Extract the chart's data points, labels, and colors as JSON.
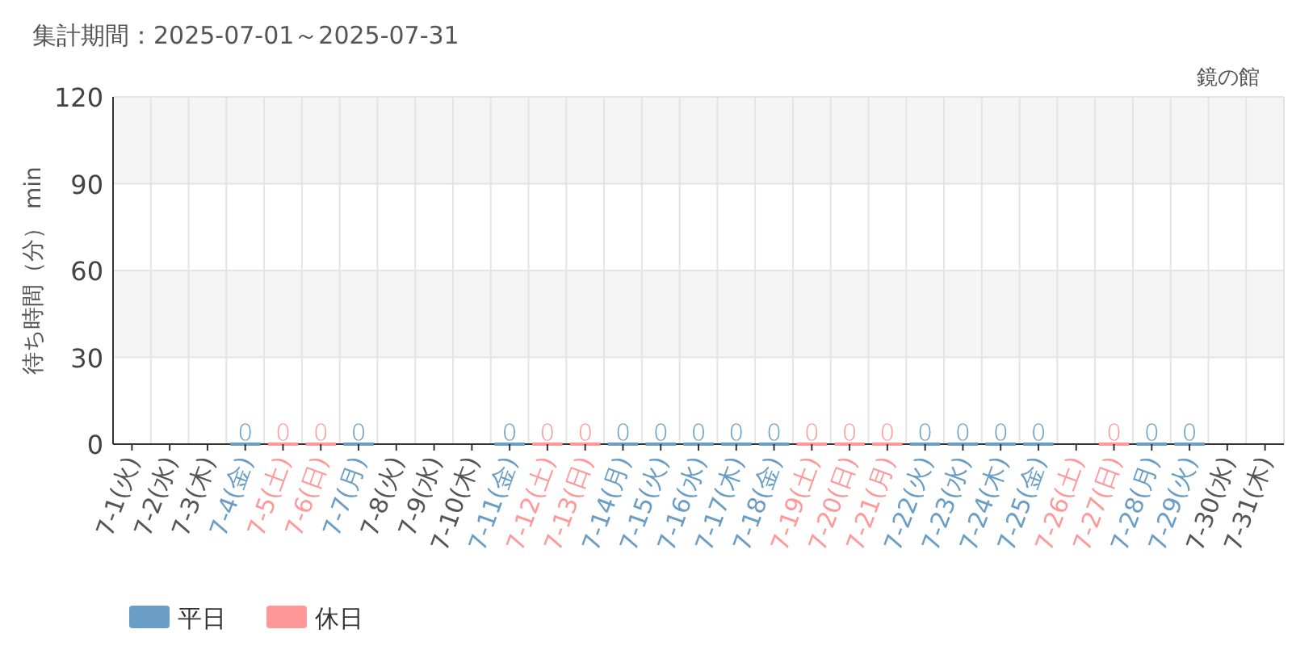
{
  "chart_data": {
    "type": "bar",
    "title": "集計期間：2025-07-01～2025-07-31",
    "subtitle": "鏡の館",
    "ylabel": "待ち時間（分） min",
    "categories": [
      "7-1(火)",
      "7-2(水)",
      "7-3(木)",
      "7-4(金)",
      "7-5(土)",
      "7-6(日)",
      "7-7(月)",
      "7-8(火)",
      "7-9(水)",
      "7-10(木)",
      "7-11(金)",
      "7-12(土)",
      "7-13(日)",
      "7-14(月)",
      "7-15(火)",
      "7-16(水)",
      "7-17(木)",
      "7-18(金)",
      "7-19(土)",
      "7-20(日)",
      "7-21(月)",
      "7-22(火)",
      "7-23(水)",
      "7-24(木)",
      "7-25(金)",
      "7-26(土)",
      "7-27(日)",
      "7-28(月)",
      "7-29(火)",
      "7-30(水)",
      "7-31(木)"
    ],
    "series": [
      {
        "name": "平日",
        "color": "#6a9ec6",
        "values": [
          null,
          null,
          null,
          0,
          null,
          null,
          0,
          null,
          null,
          null,
          0,
          null,
          null,
          0,
          0,
          0,
          0,
          0,
          null,
          null,
          null,
          0,
          0,
          0,
          0,
          null,
          null,
          0,
          0,
          null,
          null
        ]
      },
      {
        "name": "休日",
        "color": "#ff9999",
        "values": [
          null,
          null,
          null,
          null,
          0,
          0,
          null,
          null,
          null,
          null,
          null,
          0,
          0,
          null,
          null,
          null,
          null,
          null,
          0,
          0,
          0,
          null,
          null,
          null,
          null,
          null,
          0,
          null,
          null,
          null,
          null
        ]
      }
    ],
    "colors": [
      "#555555",
      "#555555",
      "#555555",
      "#6a9ec6",
      "#ff9999",
      "#ff9999",
      "#6a9ec6",
      "#555555",
      "#555555",
      "#555555",
      "#6a9ec6",
      "#ff9999",
      "#ff9999",
      "#6a9ec6",
      "#6a9ec6",
      "#6a9ec6",
      "#6a9ec6",
      "#6a9ec6",
      "#ff9999",
      "#ff9999",
      "#ff9999",
      "#6a9ec6",
      "#6a9ec6",
      "#6a9ec6",
      "#6a9ec6",
      "#ff9999",
      "#ff9999",
      "#6a9ec6",
      "#6a9ec6",
      "#555555",
      "#555555"
    ],
    "ylim": [
      0,
      120
    ],
    "yticks": [
      0,
      30,
      60,
      90,
      120
    ],
    "grid": true,
    "data_labels": true,
    "legend": "bottom left"
  }
}
